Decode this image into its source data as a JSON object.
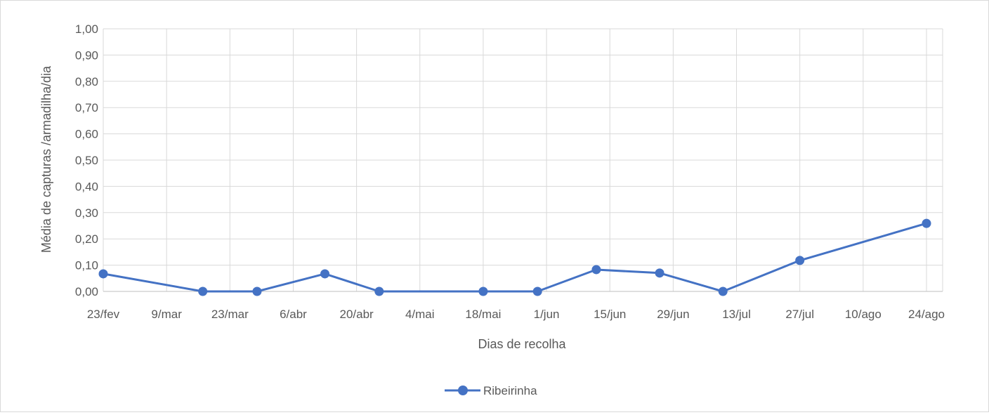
{
  "chart_data": {
    "type": "line",
    "title": "",
    "xlabel": "Dias de recolha",
    "ylabel": "Média de capturas /armadilha/dia",
    "x_ticks": [
      "23/fev",
      "9/mar",
      "23/mar",
      "6/abr",
      "20/abr",
      "4/mai",
      "18/mai",
      "1/jun",
      "15/jun",
      "29/jun",
      "13/jul",
      "27/jul",
      "10/ago",
      "24/ago"
    ],
    "y_ticks": [
      "0,00",
      "0,10",
      "0,20",
      "0,30",
      "0,40",
      "0,50",
      "0,60",
      "0,70",
      "0,80",
      "0,90",
      "1,00"
    ],
    "xlim": [
      "2023-02-23",
      "2023-08-24"
    ],
    "ylim": [
      0,
      1
    ],
    "grid": true,
    "legend_position": "bottom",
    "series": [
      {
        "name": "Ribeirinha",
        "color": "#4472c4",
        "points": [
          {
            "x": "2023-02-23",
            "y": 0.067
          },
          {
            "x": "2023-03-17",
            "y": 0.0
          },
          {
            "x": "2023-03-29",
            "y": 0.0
          },
          {
            "x": "2023-04-13",
            "y": 0.067
          },
          {
            "x": "2023-04-25",
            "y": 0.0
          },
          {
            "x": "2023-05-18",
            "y": 0.0
          },
          {
            "x": "2023-05-30",
            "y": 0.0
          },
          {
            "x": "2023-06-12",
            "y": 0.083
          },
          {
            "x": "2023-06-26",
            "y": 0.07
          },
          {
            "x": "2023-07-10",
            "y": 0.0
          },
          {
            "x": "2023-07-27",
            "y": 0.118
          },
          {
            "x": "2023-08-24",
            "y": 0.259
          }
        ]
      }
    ]
  }
}
